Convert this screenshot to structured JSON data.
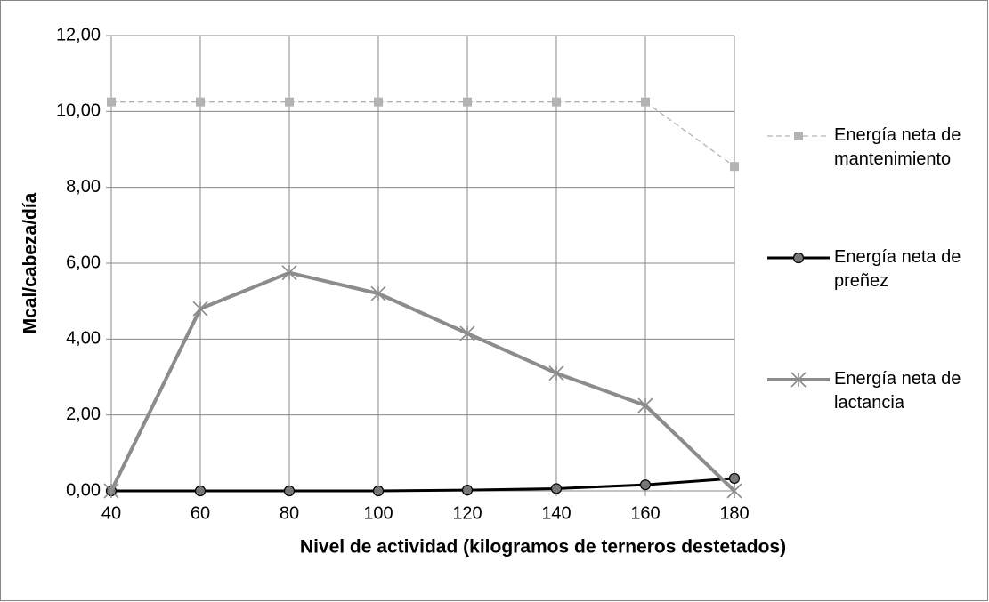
{
  "chart_data": {
    "type": "line",
    "x_label": "Nivel de actividad (kilogramos de terneros destetados)",
    "y_label": "Mcal/cabeza/día",
    "x": [
      40,
      60,
      80,
      100,
      120,
      140,
      160,
      180
    ],
    "xlim": [
      40,
      180
    ],
    "xticks": [
      40,
      60,
      80,
      100,
      120,
      140,
      160,
      180
    ],
    "ylim": [
      0,
      12
    ],
    "yticks": [
      {
        "value": 0,
        "label": "0,00"
      },
      {
        "value": 2,
        "label": "2,00"
      },
      {
        "value": 4,
        "label": "4,00"
      },
      {
        "value": 6,
        "label": "6,00"
      },
      {
        "value": 8,
        "label": "8,00"
      },
      {
        "value": 10,
        "label": "10,00"
      },
      {
        "value": 12,
        "label": "12,00"
      }
    ],
    "grid": true,
    "legend": "right",
    "series": [
      {
        "name": "Energía neta de mantenimiento",
        "color": "#b3b3b3",
        "marker": "square",
        "dashed": true,
        "values": [
          10.25,
          10.25,
          10.25,
          10.25,
          10.25,
          10.25,
          10.25,
          8.55
        ]
      },
      {
        "name": "Energía neta de preñez",
        "color": "#000000",
        "marker": "circle",
        "dashed": false,
        "values": [
          0,
          0,
          0,
          0,
          0.02,
          0.06,
          0.16,
          0.33
        ]
      },
      {
        "name": "Energía neta de lactancia",
        "color": "#8c8c8c",
        "marker": "star",
        "dashed": false,
        "values": [
          0,
          4.8,
          5.75,
          5.2,
          4.15,
          3.1,
          2.25,
          0
        ]
      }
    ]
  }
}
